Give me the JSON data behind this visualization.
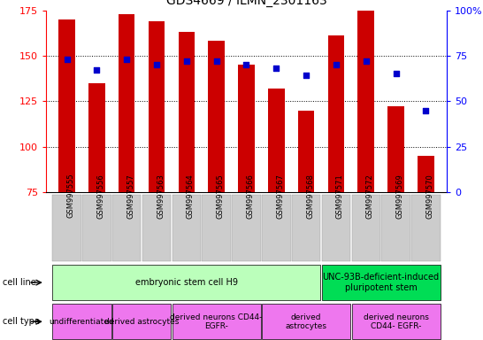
{
  "title": "GDS4669 / ILMN_2301163",
  "samples": [
    "GSM997555",
    "GSM997556",
    "GSM997557",
    "GSM997563",
    "GSM997564",
    "GSM997565",
    "GSM997566",
    "GSM997567",
    "GSM997568",
    "GSM997571",
    "GSM997572",
    "GSM997569",
    "GSM997570"
  ],
  "counts": [
    170,
    135,
    173,
    169,
    163,
    158,
    145,
    132,
    120,
    161,
    175,
    122,
    95
  ],
  "percentiles": [
    73,
    67,
    73,
    70,
    72,
    72,
    70,
    68,
    64,
    70,
    72,
    65,
    45
  ],
  "ymin": 75,
  "ymax": 175,
  "yticks": [
    75,
    100,
    125,
    150,
    175
  ],
  "y2ticks": [
    0,
    25,
    50,
    75,
    100
  ],
  "bar_color": "#cc0000",
  "dot_color": "#0000cc",
  "cell_line_groups": [
    {
      "label": "embryonic stem cell H9",
      "start": 0,
      "end": 9,
      "color": "#bbffbb"
    },
    {
      "label": "UNC-93B-deficient-induced\npluripotent stem",
      "start": 9,
      "end": 13,
      "color": "#00dd55"
    }
  ],
  "cell_type_groups": [
    {
      "label": "undifferentiated",
      "start": 0,
      "end": 2,
      "color": "#ee77ee"
    },
    {
      "label": "derived astrocytes",
      "start": 2,
      "end": 4,
      "color": "#ee77ee"
    },
    {
      "label": "derived neurons CD44-\nEGFR-",
      "start": 4,
      "end": 7,
      "color": "#ee77ee"
    },
    {
      "label": "derived\nastrocytes",
      "start": 7,
      "end": 10,
      "color": "#ee77ee"
    },
    {
      "label": "derived neurons\nCD44- EGFR-",
      "start": 10,
      "end": 13,
      "color": "#ee77ee"
    }
  ],
  "tick_bg_color": "#cccccc",
  "title_fontsize": 10,
  "bar_width": 0.55
}
